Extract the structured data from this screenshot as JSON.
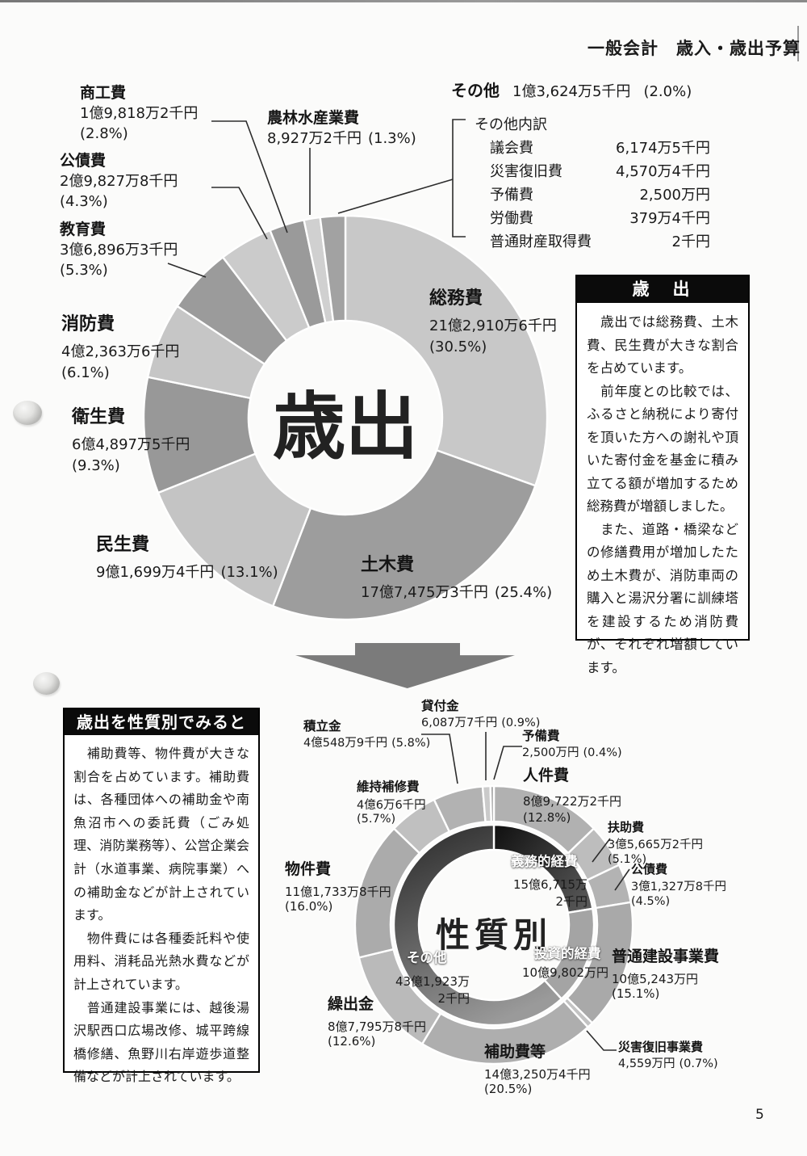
{
  "page": {
    "header": "一般会計　歳入・歳出予算",
    "page_number": "5"
  },
  "boxes": {
    "expenditure": {
      "title": "歳　出",
      "paragraphs": [
        "　歳出では総務費、土木費、民生費が大きな割合を占めています。",
        "　前年度との比較では、ふるさと納税により寄付を頂いた方への謝礼や頂いた寄付金を基金に積み立てる額が増加するため総務費が増額しました。",
        "　また、道路・橋梁などの修繕費用が増加したため土木費が、消防車両の購入と湯沢分署に訓練塔を建設するため消防費が、それぞれ増額しています。"
      ]
    },
    "nature": {
      "title": "歳出を性質別でみると",
      "paragraphs": [
        "　補助費等、物件費が大きな割合を占めています。補助費は、各種団体への補助金や南魚沼市への委託費（ごみ処理、消防業務等）、公営企業会計（水道事業、病院事業）への補助金などが計上されています。",
        "　物件費には各種委託料や使用料、消耗品光熱水費などが計上されています。",
        "　普通建設事業には、越後湯沢駅西口広場改修、城平跨線橋修繕、魚野川右岸遊歩道整備などが計上されています。"
      ]
    }
  },
  "chart_data": [
    {
      "type": "pie",
      "variant": "donut",
      "center_label": "歳出",
      "start_angle_deg": 0,
      "direction": "clockwise",
      "slices": [
        {
          "name": "総務費",
          "amount": "21億2,910万6千円",
          "pct_label": "(30.5%)",
          "percent": 30.5,
          "color": "#c8c8c8"
        },
        {
          "name": "土木費",
          "amount": "17億7,475万3千円",
          "pct_label": "(25.4%)",
          "percent": 25.4,
          "color": "#9d9d9d"
        },
        {
          "name": "民生費",
          "amount": "9億1,699万4千円",
          "pct_label": "(13.1%)",
          "percent": 13.1,
          "color": "#c4c4c4"
        },
        {
          "name": "衛生費",
          "amount": "6億4,897万5千円",
          "pct_label": "(9.3%)",
          "percent": 9.3,
          "color": "#989898"
        },
        {
          "name": "消防費",
          "amount": "4億2,363万6千円",
          "pct_label": "(6.1%)",
          "percent": 6.1,
          "color": "#c6c6c6"
        },
        {
          "name": "教育費",
          "amount": "3億6,896万3千円",
          "pct_label": "(5.3%)",
          "percent": 5.3,
          "color": "#9b9b9b"
        },
        {
          "name": "公債費",
          "amount": "2億9,827万8千円",
          "pct_label": "(4.3%)",
          "percent": 4.3,
          "color": "#cbcbcb"
        },
        {
          "name": "商工費",
          "amount": "1億9,818万2千円",
          "pct_label": "(2.8%)",
          "percent": 2.8,
          "color": "#9a9a9a"
        },
        {
          "name": "農林水産業費",
          "amount": "8,927万2千円",
          "pct_label": "(1.3%)",
          "percent": 1.3,
          "color": "#d0d0d0"
        },
        {
          "name": "その他",
          "amount": "1億3,624万5千円",
          "pct_label": "(2.0%)",
          "percent": 2.0,
          "color": "#a2a2a2"
        }
      ],
      "other_breakdown": {
        "title": "その他内訳",
        "items": [
          {
            "name": "議会費",
            "value": "6,174万5千円"
          },
          {
            "name": "災害復旧費",
            "value": "4,570万4千円"
          },
          {
            "name": "予備費",
            "value": "2,500万円"
          },
          {
            "name": "労働費",
            "value": "379万4千円"
          },
          {
            "name": "普通財産取得費",
            "value": "2千円"
          }
        ]
      }
    },
    {
      "type": "pie",
      "variant": "nested-donut",
      "center_label": "性質別",
      "start_angle_deg": 0,
      "direction": "clockwise",
      "outer_slices": [
        {
          "name": "人件費",
          "amount": "8億9,722万2千円",
          "pct_label": "(12.8%)",
          "percent": 12.8,
          "color": "#b1b1b1"
        },
        {
          "name": "扶助費",
          "amount": "3億5,665万2千円",
          "pct_label": "(5.1%)",
          "percent": 5.1,
          "color": "#bdbdbd"
        },
        {
          "name": "公債費",
          "amount": "3億1,327万8千円",
          "pct_label": "(4.5%)",
          "percent": 4.5,
          "color": "#b3b3b3"
        },
        {
          "name": "普通建設事業費",
          "amount": "10億5,243万円",
          "pct_label": "(15.1%)",
          "percent": 15.1,
          "color": "#a9a9a9"
        },
        {
          "name": "災害復旧事業費",
          "amount": "4,559万円",
          "pct_label": "(0.7%)",
          "percent": 0.7,
          "color": "#c3c3c3"
        },
        {
          "name": "補助費等",
          "amount": "14億3,250万4千円",
          "pct_label": "(20.5%)",
          "percent": 20.5,
          "color": "#aeaeae"
        },
        {
          "name": "繰出金",
          "amount": "8億7,795万8千円",
          "pct_label": "(12.6%)",
          "percent": 12.6,
          "color": "#bababa"
        },
        {
          "name": "物件費",
          "amount": "11億1,733万8千円",
          "pct_label": "(16.0%)",
          "percent": 16.0,
          "color": "#ababab"
        },
        {
          "name": "維持補修費",
          "amount": "4億6万6千円",
          "pct_label": "(5.7%)",
          "percent": 5.7,
          "color": "#c0c0c0"
        },
        {
          "name": "積立金",
          "amount": "4億548万9千円",
          "pct_label": "(5.8%)",
          "percent": 5.8,
          "color": "#b2b2b2"
        },
        {
          "name": "貸付金",
          "amount": "6,087万7千円",
          "pct_label": "(0.9%)",
          "percent": 0.9,
          "color": "#cacaca"
        },
        {
          "name": "予備費",
          "amount": "2,500万円",
          "pct_label": "(0.4%)",
          "percent": 0.4,
          "color": "#a6a6a6"
        }
      ],
      "inner_slices": [
        {
          "name": "義務的経費",
          "amount_lines": [
            "15億6,715万",
            "2千円"
          ],
          "percent": 22.4,
          "color": "#2b2b2b",
          "gradient": "gradGimu"
        },
        {
          "name": "投資的経費",
          "amount_lines": [
            "10億9,802万円"
          ],
          "percent": 15.8,
          "color": "#a4a4a4"
        },
        {
          "name": "その他",
          "amount_lines": [
            "43億1,923万",
            "2千円"
          ],
          "percent": 61.8,
          "color": "#6e6e6e",
          "gradient": "gradSonotaInner"
        }
      ]
    }
  ]
}
